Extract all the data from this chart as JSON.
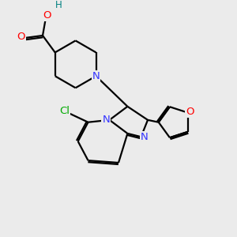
{
  "background_color": "#ebebeb",
  "atom_colors": {
    "C": "#000000",
    "N": "#3333ff",
    "O": "#ff0000",
    "Cl": "#00aa00",
    "H": "#008080"
  },
  "bond_color": "#000000",
  "bond_width": 1.6,
  "font_size_atom": 9.5,
  "font_size_H": 8.5
}
